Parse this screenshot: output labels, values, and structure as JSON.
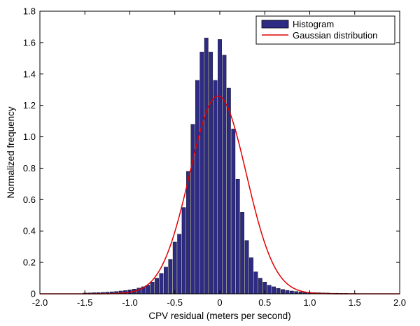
{
  "chart_data": {
    "type": "bar",
    "title": "",
    "xlabel": "CPV residual (meters per second)",
    "ylabel": "Normalized frequency",
    "xlim": [
      -2.0,
      2.0
    ],
    "ylim": [
      0,
      1.8
    ],
    "xticks": [
      "-2.0",
      "-1.5",
      "-1.0",
      "-0.5",
      "0",
      "0.5",
      "1.0",
      "1.5",
      "2.0"
    ],
    "yticks": [
      "0",
      "0.2",
      "0.4",
      "0.6",
      "0.8",
      "1.0",
      "1.2",
      "1.4",
      "1.6",
      "1.8"
    ],
    "grid": false,
    "legend_position": "top-right",
    "colors": {
      "bar": "#2e2b85",
      "curve": "#e00000"
    },
    "series": [
      {
        "name": "Histogram",
        "kind": "bar",
        "bin_width": 0.05,
        "x": [
          -1.5,
          -1.45,
          -1.4,
          -1.35,
          -1.3,
          -1.25,
          -1.2,
          -1.15,
          -1.1,
          -1.05,
          -1.0,
          -0.95,
          -0.9,
          -0.85,
          -0.8,
          -0.75,
          -0.7,
          -0.65,
          -0.6,
          -0.55,
          -0.5,
          -0.45,
          -0.4,
          -0.35,
          -0.3,
          -0.25,
          -0.2,
          -0.15,
          -0.1,
          -0.05,
          0.0,
          0.05,
          0.1,
          0.15,
          0.2,
          0.25,
          0.3,
          0.35,
          0.4,
          0.45,
          0.5,
          0.55,
          0.6,
          0.65,
          0.7,
          0.75,
          0.8,
          0.85,
          0.9,
          0.95,
          1.0,
          1.05,
          1.1,
          1.15,
          1.2,
          1.25,
          1.3,
          1.35,
          1.4,
          1.45,
          1.5
        ],
        "values": [
          0.005,
          0.006,
          0.007,
          0.008,
          0.009,
          0.011,
          0.013,
          0.015,
          0.018,
          0.021,
          0.025,
          0.03,
          0.037,
          0.045,
          0.055,
          0.075,
          0.1,
          0.13,
          0.17,
          0.22,
          0.33,
          0.38,
          0.55,
          0.78,
          1.08,
          1.36,
          1.54,
          1.63,
          1.54,
          1.36,
          1.62,
          1.52,
          1.31,
          1.05,
          0.73,
          0.52,
          0.34,
          0.23,
          0.14,
          0.1,
          0.075,
          0.055,
          0.045,
          0.035,
          0.028,
          0.022,
          0.018,
          0.015,
          0.012,
          0.01,
          0.009,
          0.008,
          0.007,
          0.006,
          0.005,
          0.004,
          0.004,
          0.003,
          0.003,
          0.002,
          0.002
        ]
      },
      {
        "name": "Gaussian distribution",
        "kind": "line",
        "mean": -0.02,
        "peak": 1.26,
        "sigma": 0.315
      }
    ]
  }
}
